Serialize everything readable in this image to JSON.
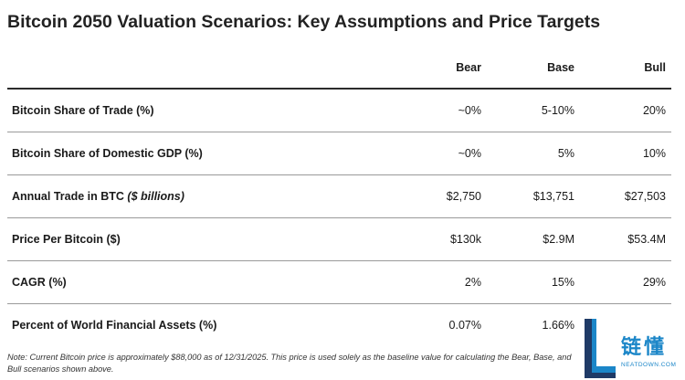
{
  "title": "Bitcoin 2050 Valuation Scenarios: Key Assumptions and Price Targets",
  "table": {
    "headers": {
      "label": "",
      "bear": "Bear",
      "base": "Base",
      "bull": "Bull"
    },
    "rows": [
      {
        "label": "Bitcoin Share of Trade (%)",
        "label_note": "",
        "bear": "~0%",
        "base": "5-10%",
        "bull": "20%"
      },
      {
        "label": "Bitcoin Share of Domestic GDP (%)",
        "label_note": "",
        "bear": "~0%",
        "base": "5%",
        "bull": "10%"
      },
      {
        "label": "Annual Trade in BTC ",
        "label_note": "($ billions)",
        "bear": "$2,750",
        "base": "$13,751",
        "bull": "$27,503"
      },
      {
        "label": "Price Per Bitcoin ($)",
        "label_note": "",
        "bear": "$130k",
        "base": "$2.9M",
        "bull": "$53.4M"
      },
      {
        "label": "CAGR (%)",
        "label_note": "",
        "bear": "2%",
        "base": "15%",
        "bull": "29%"
      },
      {
        "label": "Percent of World Financial Assets (%)",
        "label_note": "",
        "bear": "0.07%",
        "base": "1.66%",
        "bull": ""
      }
    ]
  },
  "note": "Note: Current Bitcoin price is approximately $88,000 as of 12/31/2025. This price is used solely as the baseline value for calculating the Bear, Base, and Bull scenarios shown above.",
  "watermark": {
    "letter": "L",
    "chinese": "链懂",
    "url": "NEATDOWN.COM",
    "colors": {
      "primary": "#1b86c8",
      "dark": "#1f3a66"
    }
  }
}
